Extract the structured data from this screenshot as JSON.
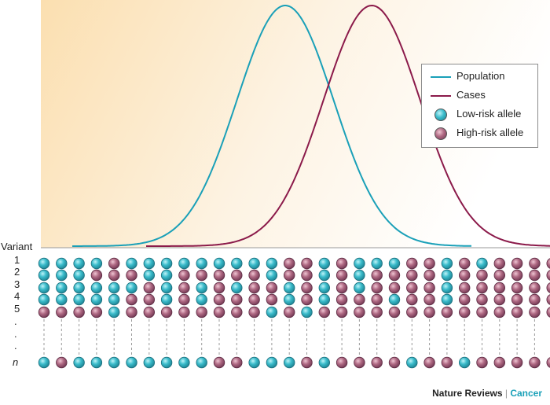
{
  "figure": {
    "variant_header": "Variant",
    "row_labels": [
      "1",
      "2",
      "3",
      "4",
      "5",
      ".",
      ".",
      ".",
      "n"
    ],
    "colors": {
      "population": "#1aa0b8",
      "cases": "#8b1a4a",
      "low_risk_allele": "#3bbccb",
      "high_risk_allele": "#b06a84",
      "background_gradient_start": "#fbdfb0",
      "background_gradient_end": "#ffffff"
    }
  },
  "chart_data": {
    "type": "line",
    "series": [
      {
        "name": "Population",
        "shape": "normal",
        "peak_position": 0.48
      },
      {
        "name": "Cases",
        "shape": "normal",
        "peak_position": 0.65
      }
    ],
    "allele_grid": {
      "rows": [
        "1",
        "2",
        "3",
        "4",
        "5",
        "n"
      ],
      "columns": 30,
      "pattern": [
        "LLLLHLLLLLLLLLHHLHLLLHHLHLHHHH",
        "LLLHHHLLHHHHHLHHLHLHHHHLHHHHHH",
        "LLLLLLHLHLHLHHLHLHLHHHHLHHHHHH",
        "LLLLLHHLHLHHHHLHLHHHLHHLHHHHHH",
        "HHHHLHHHHHHHHLHLHHHHHHHHHHHHHH",
        "LHLLLLLLLLHHLLLHLHHHHLHHLHHHHH"
      ]
    }
  },
  "legend": {
    "items": [
      {
        "label": "Population",
        "kind": "line",
        "color": "#1aa0b8"
      },
      {
        "label": "Cases",
        "kind": "line",
        "color": "#8b1a4a"
      },
      {
        "label": "Low-risk allele",
        "kind": "dot",
        "color": "#3bbccb"
      },
      {
        "label": "High-risk allele",
        "kind": "dot",
        "color": "#b06a84"
      }
    ]
  },
  "credit": {
    "journal": "Nature Reviews",
    "separator": "|",
    "section": "Cancer"
  }
}
